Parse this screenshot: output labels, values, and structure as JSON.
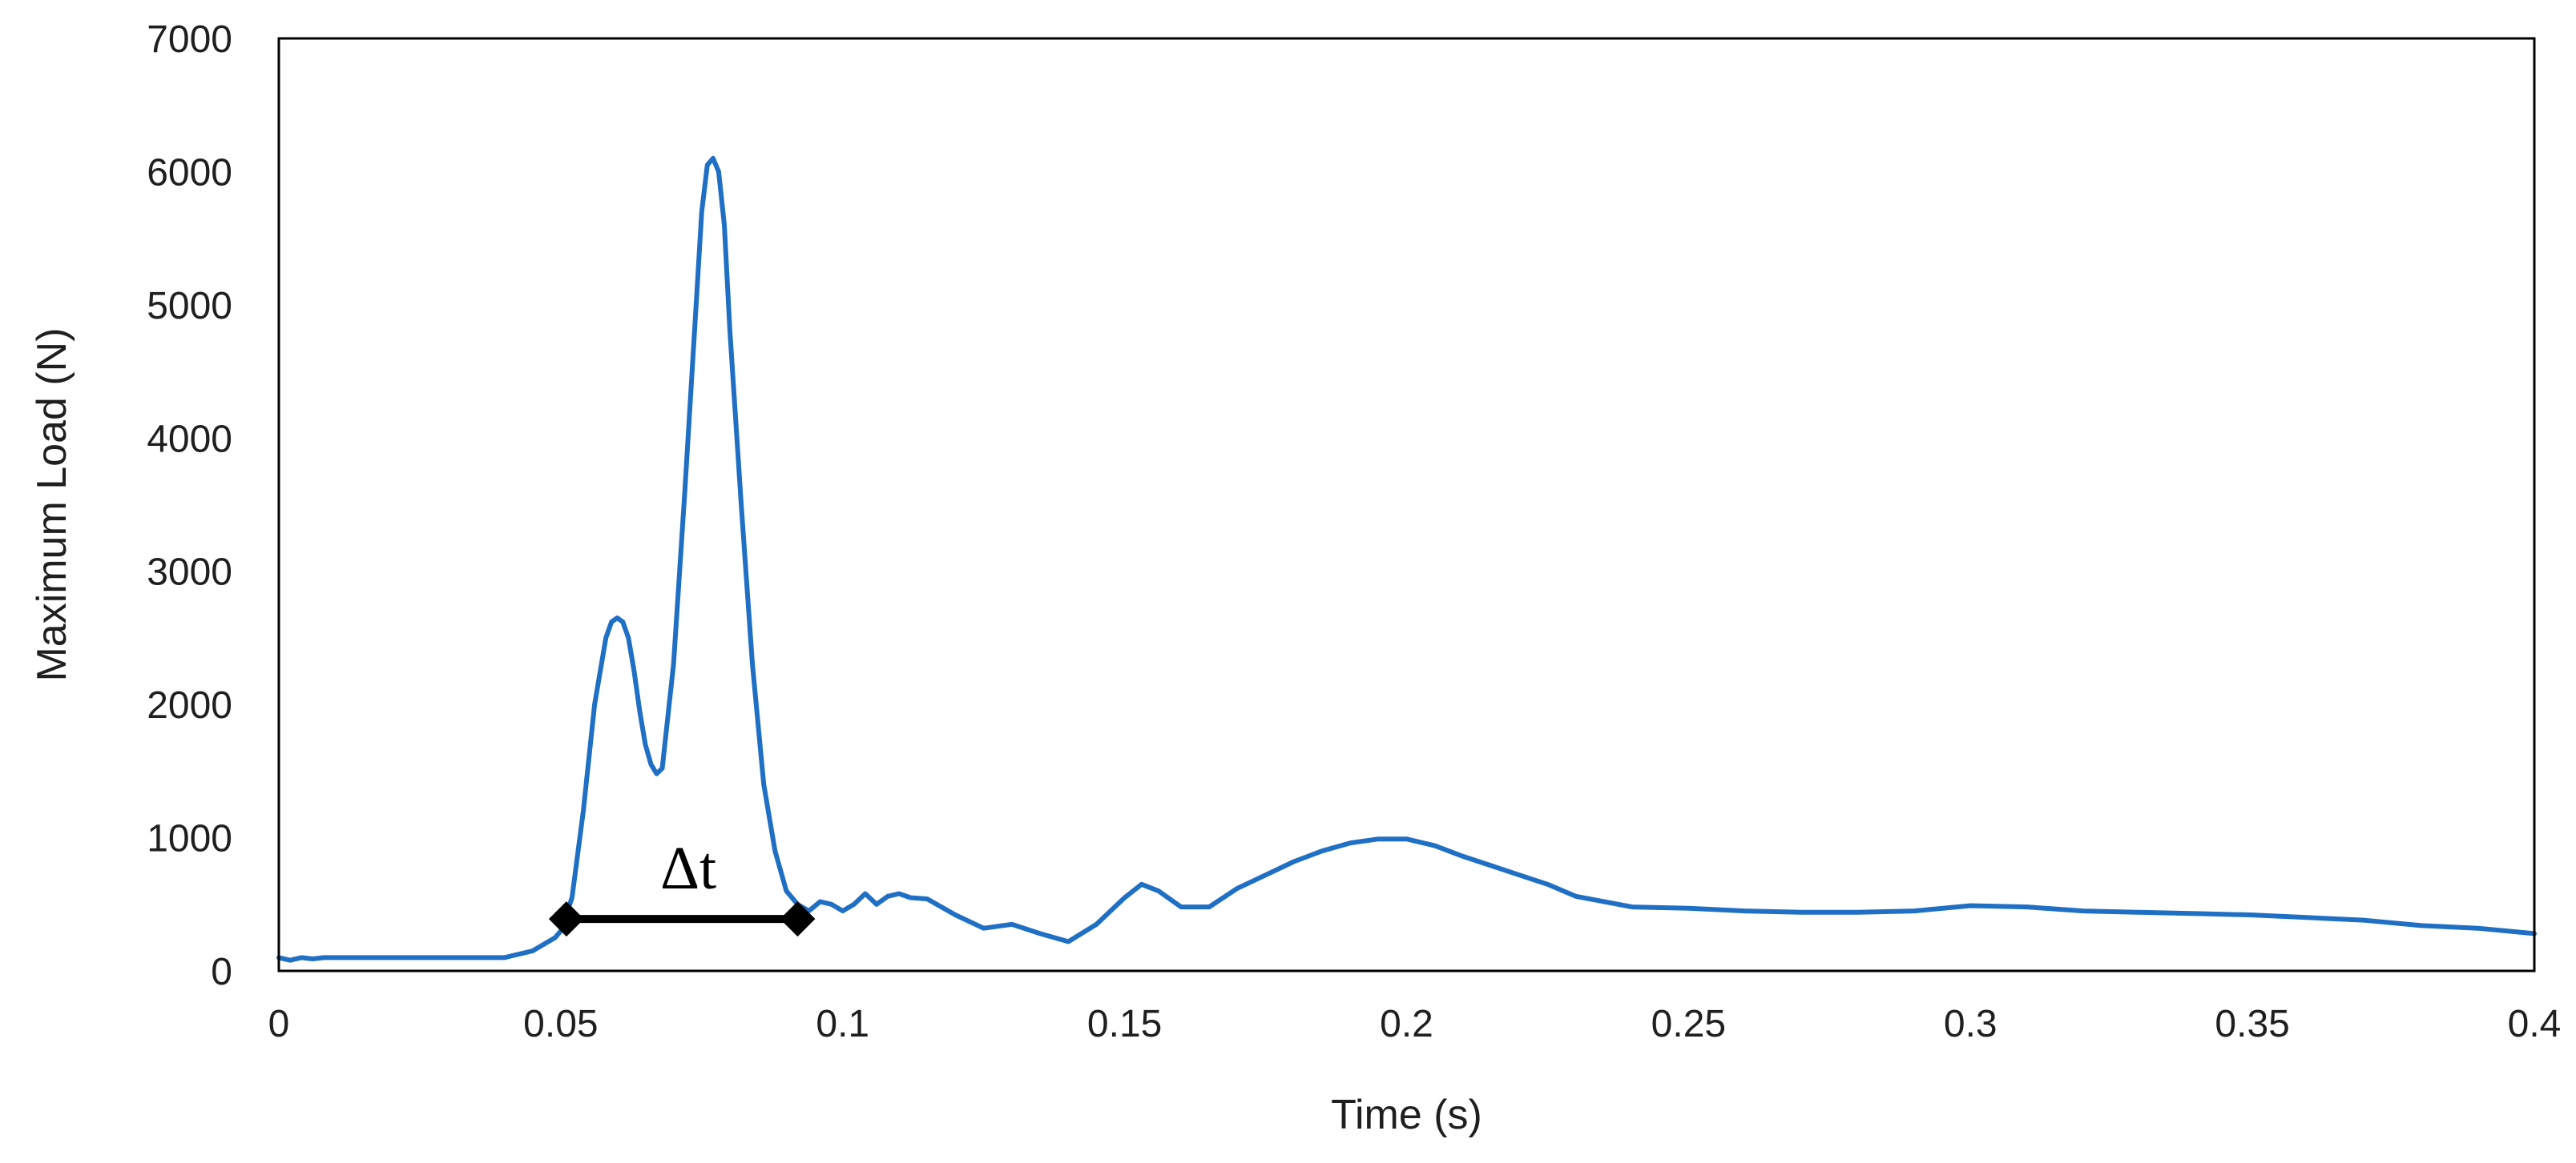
{
  "chart_data": {
    "type": "line",
    "title": "",
    "xlabel": "Time (s)",
    "ylabel": "Maximum Load (N)",
    "xlim": [
      0,
      0.4
    ],
    "ylim": [
      0,
      7000
    ],
    "x_ticks": [
      "0",
      "0.05",
      "0.1",
      "0.15",
      "0.2",
      "0.25",
      "0.3",
      "0.35",
      "0.4"
    ],
    "x_tick_values": [
      0,
      0.05,
      0.1,
      0.15,
      0.2,
      0.25,
      0.3,
      0.35,
      0.4
    ],
    "y_ticks": [
      "0",
      "1000",
      "2000",
      "3000",
      "4000",
      "5000",
      "6000",
      "7000"
    ],
    "y_tick_values": [
      0,
      1000,
      2000,
      3000,
      4000,
      5000,
      6000,
      7000
    ],
    "grid": false,
    "legend": "none",
    "line_color": "#1f6fc5",
    "series": [
      {
        "x": [
          0,
          0.002,
          0.004,
          0.006,
          0.008,
          0.01,
          0.02,
          0.03,
          0.04,
          0.045,
          0.047,
          0.049,
          0.05,
          0.052,
          0.054,
          0.056,
          0.058,
          0.059,
          0.06,
          0.061,
          0.062,
          0.063,
          0.064,
          0.065,
          0.066,
          0.067,
          0.068,
          0.07,
          0.072,
          0.074,
          0.075,
          0.076,
          0.077,
          0.078,
          0.079,
          0.08,
          0.082,
          0.084,
          0.086,
          0.088,
          0.09,
          0.092,
          0.094,
          0.096,
          0.098,
          0.1,
          0.102,
          0.104,
          0.106,
          0.108,
          0.11,
          0.112,
          0.115,
          0.12,
          0.125,
          0.13,
          0.135,
          0.14,
          0.145,
          0.15,
          0.153,
          0.156,
          0.16,
          0.165,
          0.17,
          0.175,
          0.18,
          0.185,
          0.19,
          0.195,
          0.2,
          0.205,
          0.21,
          0.215,
          0.22,
          0.225,
          0.23,
          0.24,
          0.25,
          0.26,
          0.27,
          0.28,
          0.29,
          0.3,
          0.31,
          0.32,
          0.33,
          0.34,
          0.35,
          0.36,
          0.37,
          0.38,
          0.39,
          0.4
        ],
        "y": [
          100,
          80,
          100,
          90,
          100,
          100,
          100,
          100,
          100,
          150,
          200,
          250,
          300,
          550,
          1200,
          2000,
          2500,
          2620,
          2650,
          2620,
          2500,
          2250,
          1950,
          1700,
          1550,
          1480,
          1520,
          2300,
          3600,
          5000,
          5700,
          6050,
          6100,
          6000,
          5600,
          4800,
          3500,
          2300,
          1400,
          900,
          600,
          500,
          450,
          520,
          500,
          450,
          500,
          580,
          500,
          560,
          580,
          550,
          540,
          420,
          320,
          350,
          280,
          220,
          350,
          550,
          650,
          600,
          480,
          480,
          620,
          720,
          820,
          900,
          960,
          990,
          990,
          940,
          860,
          790,
          720,
          650,
          560,
          480,
          470,
          450,
          440,
          440,
          450,
          490,
          480,
          450,
          440,
          430,
          420,
          400,
          380,
          340,
          320,
          280
        ]
      }
    ],
    "annotation": {
      "label": "Δt",
      "x_start": 0.051,
      "x_end": 0.092,
      "y": 390
    }
  }
}
